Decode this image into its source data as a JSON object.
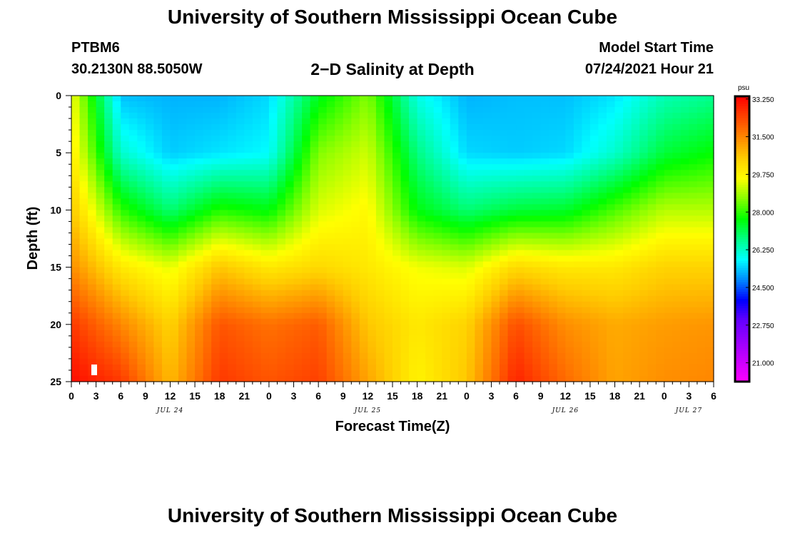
{
  "header": {
    "title": "University of Southern Mississippi Ocean Cube",
    "station_id": "PTBM6",
    "station_location": "30.2130N  88.5050W",
    "subtitle": "2−D Salinity at Depth",
    "start_label": "Model Start Time",
    "start_value": "07/24/2021 Hour 21"
  },
  "footer": {
    "title": "University of Southern Mississippi Ocean Cube"
  },
  "chart_data": {
    "type": "heatmap",
    "xlabel": "Forecast Time(Z)",
    "ylabel": "Depth (ft)",
    "x_tick_labels": [
      "0",
      "3",
      "6",
      "9",
      "12",
      "15",
      "18",
      "21",
      "0",
      "3",
      "6",
      "9",
      "12",
      "15",
      "18",
      "21",
      "0",
      "3",
      "6",
      "9",
      "12",
      "15",
      "18",
      "21",
      "0",
      "3",
      "6"
    ],
    "x_range_hours": [
      0,
      78
    ],
    "date_labels": [
      {
        "label": "JUL 24",
        "hour": 12
      },
      {
        "label": "JUL 25",
        "hour": 36
      },
      {
        "label": "JUL 26",
        "hour": 60
      },
      {
        "label": "JUL 27",
        "hour": 75
      }
    ],
    "y_ticks": [
      0,
      5,
      10,
      15,
      20,
      25
    ],
    "y_range": [
      0,
      25
    ],
    "y_inverted": true,
    "colorbar": {
      "unit": "psu",
      "range": [
        20.125,
        33.375
      ],
      "tick_values": [
        33.25,
        31.5,
        29.75,
        28.0,
        26.25,
        24.5,
        22.75,
        21.0
      ],
      "tick_labels": [
        "33.250",
        "31.500",
        "29.750",
        "28.000",
        "26.250",
        "24.500",
        "22.750",
        "21.000"
      ],
      "colors": [
        "#ff00ff",
        "#cc00ff",
        "#9900ff",
        "#6600ff",
        "#0000ff",
        "#0088ff",
        "#00ffff",
        "#00ff88",
        "#00ff00",
        "#88ff00",
        "#ffff00",
        "#ffcc00",
        "#ff8800",
        "#ff4400",
        "#ff0000"
      ]
    },
    "time_hours": [
      0,
      6,
      12,
      18,
      24,
      30,
      36,
      42,
      48,
      54,
      60,
      66,
      72,
      78
    ],
    "depth_ft": [
      0,
      5,
      10,
      15,
      20,
      25
    ],
    "salinity_psu": [
      [
        29.6,
        25.3,
        25.2,
        25.2,
        25.5,
        27.5,
        28.6,
        26.0,
        25.2,
        25.3,
        25.3,
        25.6,
        26.4,
        26.7
      ],
      [
        30.0,
        26.2,
        25.4,
        25.6,
        25.8,
        28.6,
        29.2,
        26.8,
        25.5,
        25.4,
        25.5,
        26.2,
        27.3,
        27.7
      ],
      [
        30.6,
        28.0,
        26.9,
        27.9,
        27.6,
        29.3,
        29.7,
        27.6,
        26.9,
        27.3,
        27.4,
        28.2,
        29.0,
        29.0
      ],
      [
        31.4,
        30.0,
        29.4,
        30.6,
        30.0,
        30.3,
        30.0,
        29.5,
        29.3,
        30.3,
        30.0,
        30.0,
        30.4,
        30.4
      ],
      [
        32.6,
        31.5,
        30.4,
        32.2,
        31.8,
        32.1,
        30.6,
        30.0,
        30.4,
        32.3,
        31.4,
        31.0,
        31.2,
        31.3
      ],
      [
        33.2,
        32.6,
        30.8,
        32.6,
        32.2,
        32.5,
        31.1,
        29.8,
        30.6,
        32.9,
        31.9,
        31.1,
        31.4,
        31.5
      ]
    ],
    "annotation": "small white marker near x=3h, depth 24ft"
  }
}
